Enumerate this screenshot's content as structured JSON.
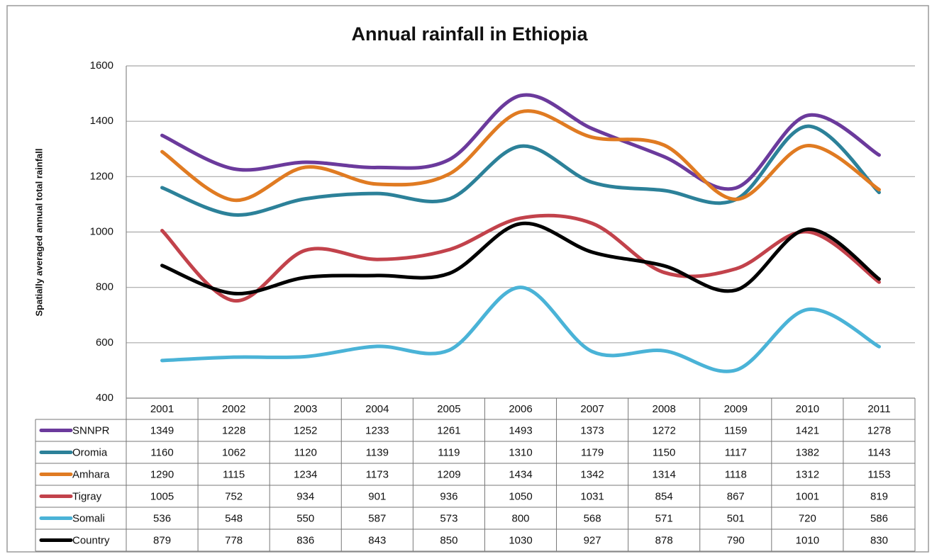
{
  "chart_data": {
    "type": "line",
    "title": "Annual rainfall in Ethiopia",
    "y_label": "Spatially averaged annual total rainfall",
    "categories": [
      "2001",
      "2002",
      "2003",
      "2004",
      "2005",
      "2006",
      "2007",
      "2008",
      "2009",
      "2010",
      "2011"
    ],
    "series": [
      {
        "name": "SNNPR",
        "color": "#6b3a9c",
        "values": [
          1349,
          1228,
          1252,
          1233,
          1261,
          1493,
          1373,
          1272,
          1159,
          1421,
          1278
        ]
      },
      {
        "name": "Oromia",
        "color": "#2c8199",
        "values": [
          1160,
          1062,
          1120,
          1139,
          1119,
          1310,
          1179,
          1150,
          1117,
          1382,
          1143
        ]
      },
      {
        "name": "Amhara",
        "color": "#e07b22",
        "values": [
          1290,
          1115,
          1234,
          1173,
          1209,
          1434,
          1342,
          1314,
          1118,
          1312,
          1153
        ]
      },
      {
        "name": "Tigray",
        "color": "#c2424b",
        "values": [
          1005,
          752,
          934,
          901,
          936,
          1050,
          1031,
          854,
          867,
          1001,
          819
        ]
      },
      {
        "name": "Somali",
        "color": "#4ab3d7",
        "values": [
          536,
          548,
          550,
          587,
          573,
          800,
          568,
          571,
          501,
          720,
          586
        ]
      },
      {
        "name": "Country",
        "color": "#000000",
        "values": [
          879,
          778,
          836,
          843,
          850,
          1030,
          927,
          878,
          790,
          1010,
          830
        ]
      }
    ],
    "ylim": [
      400,
      1600
    ],
    "yticks": [
      400,
      600,
      800,
      1000,
      1200,
      1400,
      1600
    ],
    "grid": true
  }
}
